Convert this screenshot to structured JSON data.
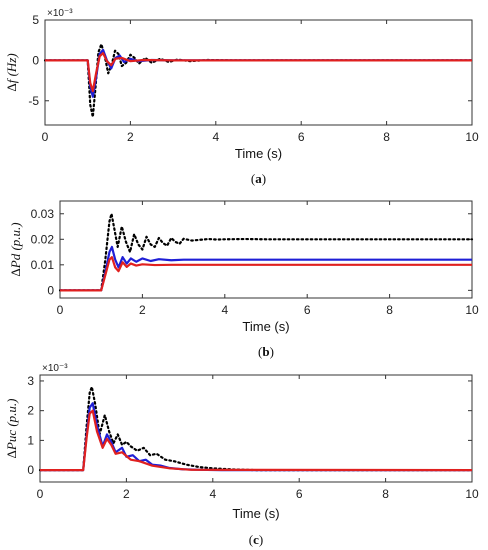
{
  "chart_data": [
    {
      "type": "line",
      "xlabel": "Time (s)",
      "ylabel_delta": "Δ",
      "ylabel": "f (Hz)",
      "ytick_multiplier": "×10⁻³",
      "caption_open": "(",
      "caption_letter": "a",
      "caption_close": ")",
      "xlim": [
        0,
        10
      ],
      "ylim": [
        -8,
        5
      ],
      "xticks": [
        0,
        2,
        4,
        6,
        8,
        10
      ],
      "yticks": [
        5,
        0,
        -5
      ],
      "grid": false,
      "series": [
        {
          "color": "#000000",
          "style": "dotted",
          "x": [
            0,
            1.0,
            1.06,
            1.12,
            1.18,
            1.25,
            1.32,
            1.4,
            1.48,
            1.56,
            1.64,
            1.72,
            1.8,
            1.9,
            2.0,
            2.1,
            2.2,
            2.35,
            2.5,
            2.7,
            2.9,
            3.1,
            3.4,
            3.8,
            4.5,
            10
          ],
          "y": [
            0,
            0,
            -5.5,
            -7.0,
            -3.5,
            1.0,
            2.0,
            0.5,
            -1.6,
            -0.6,
            1.2,
            0.8,
            -0.7,
            -0.3,
            0.7,
            0.3,
            -0.4,
            0.3,
            -0.3,
            0.2,
            -0.2,
            0.1,
            -0.1,
            0.05,
            0,
            0
          ]
        },
        {
          "color": "#1f1fd6",
          "style": "solid",
          "x": [
            0,
            1.0,
            1.06,
            1.12,
            1.2,
            1.28,
            1.36,
            1.45,
            1.55,
            1.65,
            1.75,
            1.85,
            2.0,
            2.2,
            2.5,
            3.0,
            10
          ],
          "y": [
            0,
            0,
            -3.2,
            -4.5,
            -2.0,
            0.8,
            1.3,
            0.0,
            -1.0,
            0.3,
            0.6,
            -0.2,
            0.2,
            -0.1,
            0.05,
            0,
            0
          ]
        },
        {
          "color": "#e0201f",
          "style": "solid",
          "x": [
            0,
            1.0,
            1.06,
            1.12,
            1.2,
            1.28,
            1.36,
            1.45,
            1.55,
            1.65,
            1.8,
            2.0,
            2.3,
            3.0,
            10
          ],
          "y": [
            0,
            0,
            -2.8,
            -3.8,
            -1.5,
            0.5,
            0.9,
            -0.1,
            -0.6,
            0.2,
            0.3,
            -0.1,
            0.05,
            0,
            0
          ]
        }
      ]
    },
    {
      "type": "line",
      "xlabel": "Time (s)",
      "ylabel_delta": "Δ",
      "ylabel": "Pd (p.u.)",
      "caption_open": "(",
      "caption_letter": "b",
      "caption_close": ")",
      "xlim": [
        0,
        10
      ],
      "ylim": [
        -0.003,
        0.035
      ],
      "xticks": [
        0,
        2,
        4,
        6,
        8,
        10
      ],
      "yticks": [
        0.03,
        0.02,
        0.01,
        0
      ],
      "ytick_labels": [
        "0.03",
        "0.02",
        "0.01",
        "0"
      ],
      "grid": false,
      "series": [
        {
          "color": "#000000",
          "style": "dotted",
          "x": [
            0,
            1.0,
            1.1,
            1.2,
            1.25,
            1.32,
            1.4,
            1.5,
            1.6,
            1.7,
            1.8,
            1.9,
            2.0,
            2.1,
            2.2,
            2.3,
            2.4,
            2.5,
            2.6,
            2.7,
            2.8,
            2.9,
            3.0,
            3.2,
            3.4,
            3.6,
            3.8,
            4.0,
            4.5,
            5,
            10
          ],
          "y": [
            0,
            0,
            0.012,
            0.027,
            0.03,
            0.024,
            0.017,
            0.025,
            0.019,
            0.015,
            0.022,
            0.018,
            0.016,
            0.021,
            0.018,
            0.017,
            0.0205,
            0.0185,
            0.0175,
            0.0205,
            0.019,
            0.0182,
            0.0202,
            0.0195,
            0.0198,
            0.0201,
            0.0199,
            0.02,
            0.0201,
            0.02,
            0.02
          ]
        },
        {
          "color": "#1f1fd6",
          "style": "solid",
          "x": [
            0,
            1.0,
            1.1,
            1.2,
            1.26,
            1.34,
            1.42,
            1.52,
            1.62,
            1.72,
            1.85,
            2.0,
            2.2,
            2.4,
            2.7,
            3.0,
            10
          ],
          "y": [
            0,
            0,
            0.007,
            0.015,
            0.017,
            0.012,
            0.009,
            0.013,
            0.0105,
            0.0125,
            0.0112,
            0.0125,
            0.0115,
            0.0122,
            0.0118,
            0.012,
            0.012
          ]
        },
        {
          "color": "#e0201f",
          "style": "solid",
          "x": [
            0,
            1.0,
            1.1,
            1.2,
            1.26,
            1.34,
            1.42,
            1.52,
            1.62,
            1.72,
            1.85,
            2.0,
            2.3,
            2.7,
            10
          ],
          "y": [
            0,
            0,
            0.006,
            0.012,
            0.013,
            0.009,
            0.0075,
            0.011,
            0.0092,
            0.0105,
            0.0097,
            0.0102,
            0.0099,
            0.01,
            0.01
          ]
        }
      ]
    },
    {
      "type": "line",
      "xlabel": "Time (s)",
      "ylabel_delta": "Δ",
      "ylabel": "Puc (p.u.)",
      "ytick_multiplier": "×10⁻³",
      "caption_open": "(",
      "caption_letter": "c",
      "caption_close": ")",
      "xlim": [
        0,
        10
      ],
      "ylim": [
        -0.4,
        3.2
      ],
      "xticks": [
        0,
        2,
        4,
        6,
        8,
        10
      ],
      "yticks": [
        3,
        2,
        1,
        0
      ],
      "grid": false,
      "series": [
        {
          "color": "#000000",
          "style": "dotted",
          "x": [
            0,
            1.0,
            1.08,
            1.15,
            1.2,
            1.28,
            1.38,
            1.5,
            1.6,
            1.7,
            1.8,
            1.9,
            2.0,
            2.1,
            2.25,
            2.4,
            2.55,
            2.7,
            2.9,
            3.1,
            3.4,
            3.7,
            4.0,
            4.5,
            5,
            10
          ],
          "y": [
            0,
            0,
            1.5,
            2.6,
            2.8,
            2.2,
            1.2,
            1.85,
            1.3,
            0.9,
            1.2,
            0.85,
            0.95,
            0.8,
            0.65,
            0.75,
            0.5,
            0.55,
            0.35,
            0.3,
            0.18,
            0.1,
            0.06,
            0.02,
            0,
            0
          ]
        },
        {
          "color": "#1f1fd6",
          "style": "solid",
          "x": [
            0,
            1.0,
            1.08,
            1.15,
            1.22,
            1.32,
            1.45,
            1.55,
            1.65,
            1.75,
            1.9,
            2.0,
            2.15,
            2.3,
            2.45,
            2.6,
            2.8,
            3.0,
            3.3,
            3.7,
            4.2,
            10
          ],
          "y": [
            0,
            0,
            1.2,
            2.1,
            2.25,
            1.5,
            0.8,
            1.2,
            0.95,
            0.6,
            0.75,
            0.45,
            0.5,
            0.3,
            0.35,
            0.18,
            0.15,
            0.07,
            0.03,
            0.01,
            0,
            0
          ]
        },
        {
          "color": "#e0201f",
          "style": "solid",
          "x": [
            0,
            1.0,
            1.08,
            1.15,
            1.22,
            1.32,
            1.45,
            1.55,
            1.65,
            1.75,
            1.9,
            2.1,
            2.3,
            2.6,
            3.0,
            3.5,
            10
          ],
          "y": [
            0,
            0,
            1.1,
            1.9,
            2.0,
            1.3,
            0.75,
            1.05,
            0.85,
            0.55,
            0.6,
            0.35,
            0.3,
            0.15,
            0.06,
            0.01,
            0
          ]
        }
      ]
    }
  ]
}
